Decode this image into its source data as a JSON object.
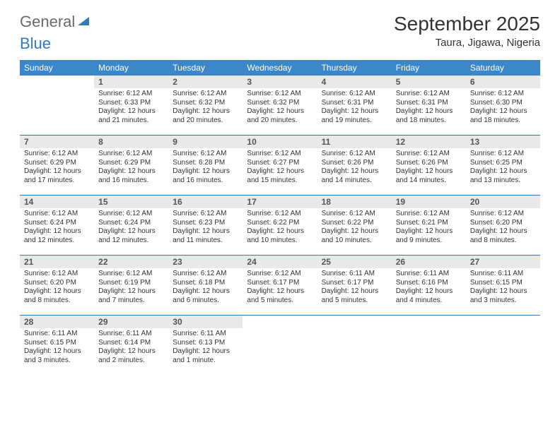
{
  "brand": {
    "part1": "General",
    "part2": "Blue"
  },
  "title": "September 2025",
  "location": "Taura, Jigawa, Nigeria",
  "colors": {
    "header_bg": "#3b87c8",
    "header_text": "#ffffff",
    "daynum_bg": "#e9e9e9",
    "rule": "#2f7bbf",
    "text": "#333333",
    "logo_gray": "#6a6a6a",
    "logo_blue": "#2f7bbf"
  },
  "day_headers": [
    "Sunday",
    "Monday",
    "Tuesday",
    "Wednesday",
    "Thursday",
    "Friday",
    "Saturday"
  ],
  "weeks": [
    [
      {
        "n": "",
        "sunrise": "",
        "sunset": "",
        "daylight": ""
      },
      {
        "n": "1",
        "sunrise": "Sunrise: 6:12 AM",
        "sunset": "Sunset: 6:33 PM",
        "daylight": "Daylight: 12 hours and 21 minutes."
      },
      {
        "n": "2",
        "sunrise": "Sunrise: 6:12 AM",
        "sunset": "Sunset: 6:32 PM",
        "daylight": "Daylight: 12 hours and 20 minutes."
      },
      {
        "n": "3",
        "sunrise": "Sunrise: 6:12 AM",
        "sunset": "Sunset: 6:32 PM",
        "daylight": "Daylight: 12 hours and 20 minutes."
      },
      {
        "n": "4",
        "sunrise": "Sunrise: 6:12 AM",
        "sunset": "Sunset: 6:31 PM",
        "daylight": "Daylight: 12 hours and 19 minutes."
      },
      {
        "n": "5",
        "sunrise": "Sunrise: 6:12 AM",
        "sunset": "Sunset: 6:31 PM",
        "daylight": "Daylight: 12 hours and 18 minutes."
      },
      {
        "n": "6",
        "sunrise": "Sunrise: 6:12 AM",
        "sunset": "Sunset: 6:30 PM",
        "daylight": "Daylight: 12 hours and 18 minutes."
      }
    ],
    [
      {
        "n": "7",
        "sunrise": "Sunrise: 6:12 AM",
        "sunset": "Sunset: 6:29 PM",
        "daylight": "Daylight: 12 hours and 17 minutes."
      },
      {
        "n": "8",
        "sunrise": "Sunrise: 6:12 AM",
        "sunset": "Sunset: 6:29 PM",
        "daylight": "Daylight: 12 hours and 16 minutes."
      },
      {
        "n": "9",
        "sunrise": "Sunrise: 6:12 AM",
        "sunset": "Sunset: 6:28 PM",
        "daylight": "Daylight: 12 hours and 16 minutes."
      },
      {
        "n": "10",
        "sunrise": "Sunrise: 6:12 AM",
        "sunset": "Sunset: 6:27 PM",
        "daylight": "Daylight: 12 hours and 15 minutes."
      },
      {
        "n": "11",
        "sunrise": "Sunrise: 6:12 AM",
        "sunset": "Sunset: 6:26 PM",
        "daylight": "Daylight: 12 hours and 14 minutes."
      },
      {
        "n": "12",
        "sunrise": "Sunrise: 6:12 AM",
        "sunset": "Sunset: 6:26 PM",
        "daylight": "Daylight: 12 hours and 14 minutes."
      },
      {
        "n": "13",
        "sunrise": "Sunrise: 6:12 AM",
        "sunset": "Sunset: 6:25 PM",
        "daylight": "Daylight: 12 hours and 13 minutes."
      }
    ],
    [
      {
        "n": "14",
        "sunrise": "Sunrise: 6:12 AM",
        "sunset": "Sunset: 6:24 PM",
        "daylight": "Daylight: 12 hours and 12 minutes."
      },
      {
        "n": "15",
        "sunrise": "Sunrise: 6:12 AM",
        "sunset": "Sunset: 6:24 PM",
        "daylight": "Daylight: 12 hours and 12 minutes."
      },
      {
        "n": "16",
        "sunrise": "Sunrise: 6:12 AM",
        "sunset": "Sunset: 6:23 PM",
        "daylight": "Daylight: 12 hours and 11 minutes."
      },
      {
        "n": "17",
        "sunrise": "Sunrise: 6:12 AM",
        "sunset": "Sunset: 6:22 PM",
        "daylight": "Daylight: 12 hours and 10 minutes."
      },
      {
        "n": "18",
        "sunrise": "Sunrise: 6:12 AM",
        "sunset": "Sunset: 6:22 PM",
        "daylight": "Daylight: 12 hours and 10 minutes."
      },
      {
        "n": "19",
        "sunrise": "Sunrise: 6:12 AM",
        "sunset": "Sunset: 6:21 PM",
        "daylight": "Daylight: 12 hours and 9 minutes."
      },
      {
        "n": "20",
        "sunrise": "Sunrise: 6:12 AM",
        "sunset": "Sunset: 6:20 PM",
        "daylight": "Daylight: 12 hours and 8 minutes."
      }
    ],
    [
      {
        "n": "21",
        "sunrise": "Sunrise: 6:12 AM",
        "sunset": "Sunset: 6:20 PM",
        "daylight": "Daylight: 12 hours and 8 minutes."
      },
      {
        "n": "22",
        "sunrise": "Sunrise: 6:12 AM",
        "sunset": "Sunset: 6:19 PM",
        "daylight": "Daylight: 12 hours and 7 minutes."
      },
      {
        "n": "23",
        "sunrise": "Sunrise: 6:12 AM",
        "sunset": "Sunset: 6:18 PM",
        "daylight": "Daylight: 12 hours and 6 minutes."
      },
      {
        "n": "24",
        "sunrise": "Sunrise: 6:12 AM",
        "sunset": "Sunset: 6:17 PM",
        "daylight": "Daylight: 12 hours and 5 minutes."
      },
      {
        "n": "25",
        "sunrise": "Sunrise: 6:11 AM",
        "sunset": "Sunset: 6:17 PM",
        "daylight": "Daylight: 12 hours and 5 minutes."
      },
      {
        "n": "26",
        "sunrise": "Sunrise: 6:11 AM",
        "sunset": "Sunset: 6:16 PM",
        "daylight": "Daylight: 12 hours and 4 minutes."
      },
      {
        "n": "27",
        "sunrise": "Sunrise: 6:11 AM",
        "sunset": "Sunset: 6:15 PM",
        "daylight": "Daylight: 12 hours and 3 minutes."
      }
    ],
    [
      {
        "n": "28",
        "sunrise": "Sunrise: 6:11 AM",
        "sunset": "Sunset: 6:15 PM",
        "daylight": "Daylight: 12 hours and 3 minutes."
      },
      {
        "n": "29",
        "sunrise": "Sunrise: 6:11 AM",
        "sunset": "Sunset: 6:14 PM",
        "daylight": "Daylight: 12 hours and 2 minutes."
      },
      {
        "n": "30",
        "sunrise": "Sunrise: 6:11 AM",
        "sunset": "Sunset: 6:13 PM",
        "daylight": "Daylight: 12 hours and 1 minute."
      },
      {
        "n": "",
        "sunrise": "",
        "sunset": "",
        "daylight": ""
      },
      {
        "n": "",
        "sunrise": "",
        "sunset": "",
        "daylight": ""
      },
      {
        "n": "",
        "sunrise": "",
        "sunset": "",
        "daylight": ""
      },
      {
        "n": "",
        "sunrise": "",
        "sunset": "",
        "daylight": ""
      }
    ]
  ]
}
